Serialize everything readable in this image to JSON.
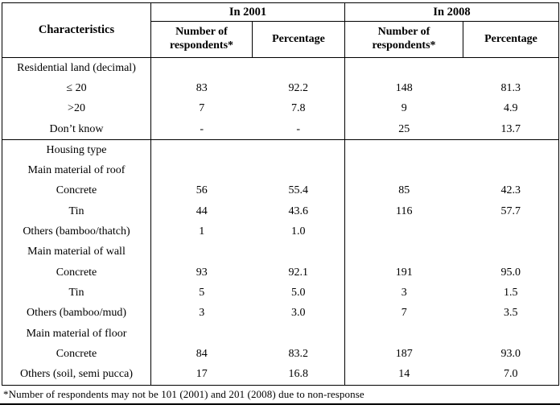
{
  "colors": {
    "background": "#ffffff",
    "border": "#000000",
    "text": "#000000"
  },
  "table": {
    "characteristics_header": "Characteristics",
    "col_groups": [
      {
        "label": "In 2001",
        "subcols": [
          "Number of respondents*",
          "Percentage"
        ]
      },
      {
        "label": "In 2008",
        "subcols": [
          "Number of respondents*",
          "Percentage"
        ]
      }
    ],
    "rows": [
      {
        "label": "Residential land (decimal)",
        "values": [
          "",
          "",
          "",
          ""
        ],
        "section_end": false
      },
      {
        "label": "≤ 20",
        "values": [
          "83",
          "92.2",
          "148",
          "81.3"
        ],
        "section_end": false
      },
      {
        "label": ">20",
        "values": [
          "7",
          "7.8",
          "9",
          "4.9"
        ],
        "section_end": false
      },
      {
        "label": "Don’t know",
        "values": [
          "-",
          "-",
          "25",
          "13.7"
        ],
        "section_end": true
      },
      {
        "label": "Housing type",
        "values": [
          "",
          "",
          "",
          ""
        ],
        "section_end": false
      },
      {
        "label": "Main material of roof",
        "values": [
          "",
          "",
          "",
          ""
        ],
        "section_end": false
      },
      {
        "label": "Concrete",
        "values": [
          "56",
          "55.4",
          "85",
          "42.3"
        ],
        "section_end": false
      },
      {
        "label": "Tin",
        "values": [
          "44",
          "43.6",
          "116",
          "57.7"
        ],
        "section_end": false
      },
      {
        "label": "Others (bamboo/thatch)",
        "values": [
          "1",
          "1.0",
          "",
          ""
        ],
        "section_end": false
      },
      {
        "label": "Main material of wall",
        "values": [
          "",
          "",
          "",
          ""
        ],
        "section_end": false
      },
      {
        "label": "Concrete",
        "values": [
          "93",
          "92.1",
          "191",
          "95.0"
        ],
        "section_end": false
      },
      {
        "label": "Tin",
        "values": [
          "5",
          "5.0",
          "3",
          "1.5"
        ],
        "section_end": false
      },
      {
        "label": "Others (bamboo/mud)",
        "values": [
          "3",
          "3.0",
          "7",
          "3.5"
        ],
        "section_end": false
      },
      {
        "label": "Main material of floor",
        "values": [
          "",
          "",
          "",
          ""
        ],
        "section_end": false
      },
      {
        "label": "Concrete",
        "values": [
          "84",
          "83.2",
          "187",
          "93.0"
        ],
        "section_end": false
      },
      {
        "label": "Others (soil, semi pucca)",
        "values": [
          "17",
          "16.8",
          "14",
          "7.0"
        ],
        "section_end": false
      }
    ],
    "footnote": "*Number of respondents may not be 101 (2001) and 201 (2008) due to non-response"
  }
}
